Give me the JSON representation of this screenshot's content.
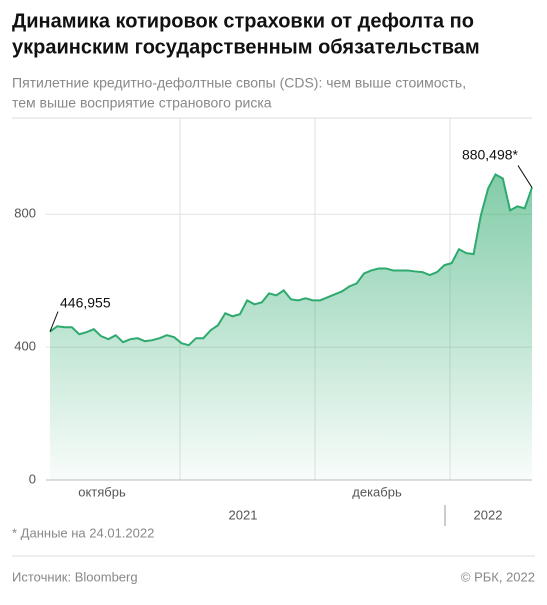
{
  "title": [
    "Динамика котировок страховки от дефолта по",
    "украинским государственным обязательствам"
  ],
  "subtitle": [
    "Пятилетние кредитно-дефолтные свопы (CDS): чем выше стоимость,",
    "тем выше восприятие странового риска"
  ],
  "chart_data": {
    "type": "area",
    "color": "#2eaa6e",
    "values": [
      446.955,
      463,
      460,
      460,
      439,
      445,
      454,
      433,
      424,
      436,
      415,
      424,
      427,
      418,
      421,
      427,
      436,
      430,
      412,
      406,
      427,
      427,
      451,
      466,
      502,
      493,
      499,
      541,
      529,
      535,
      562,
      556,
      571,
      544,
      541,
      547,
      541,
      541,
      550,
      559,
      568,
      583,
      592,
      622,
      631,
      637,
      637,
      631,
      631,
      631,
      628,
      626,
      617,
      626,
      647,
      653,
      695,
      683,
      680,
      797,
      878,
      920,
      908,
      812,
      824,
      818,
      880.498
    ],
    "ylim": [
      0,
      1090
    ],
    "yticks": [
      0,
      400,
      800
    ],
    "grid": true,
    "month_labels": [
      "октябрь",
      "декабрь"
    ],
    "year_labels": [
      "2021",
      "2022"
    ],
    "annotations": [
      "446,955",
      "880,498*"
    ]
  },
  "note": "* Данные на 24.01.2022",
  "source": "Источник: Bloomberg",
  "copyright": "© РБК, 2022"
}
